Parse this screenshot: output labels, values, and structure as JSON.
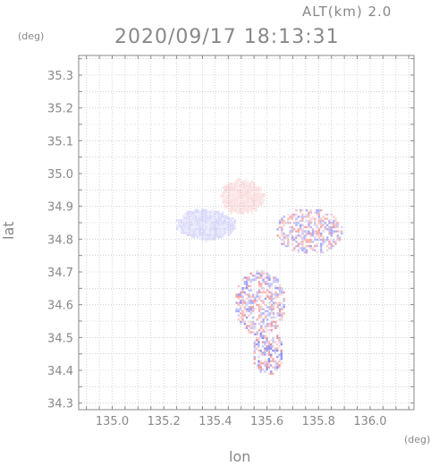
{
  "chart_data": {
    "type": "heatmap",
    "title": "2020/09/17 18:13:31",
    "altitude_label": "ALT(km) 2.0",
    "xlabel": "lon",
    "ylabel": "lat",
    "x_unit": "(deg)",
    "y_unit": "(deg)",
    "xlim": [
      134.87,
      136.17
    ],
    "ylim": [
      34.28,
      35.36
    ],
    "x_ticks": [
      "135.0",
      "135.2",
      "135.4",
      "135.6",
      "135.8",
      "136.0"
    ],
    "y_ticks": [
      "34.3",
      "34.4",
      "34.5",
      "34.6",
      "34.7",
      "34.8",
      "34.9",
      "35.0",
      "35.1",
      "35.2",
      "35.3"
    ],
    "grid": true,
    "colors": {
      "positive": "#f08080",
      "negative": "#8080f0",
      "frame": "#888888",
      "grid": "#bbbbbb"
    },
    "regions": [
      {
        "name": "northwest-lobe-negative",
        "lon": 135.36,
        "lat": 34.84,
        "rlon": 0.12,
        "rlat": 0.05,
        "sign": -1,
        "intensity": 0.35
      },
      {
        "name": "northwest-lobe-positive",
        "lon": 135.5,
        "lat": 34.925,
        "rlon": 0.09,
        "rlat": 0.055,
        "sign": 1,
        "intensity": 0.3
      },
      {
        "name": "east-cluster",
        "lon": 135.76,
        "lat": 34.82,
        "rlon": 0.13,
        "rlat": 0.07,
        "sign": 0,
        "intensity": 0.5
      },
      {
        "name": "central-south-cluster",
        "lon": 135.57,
        "lat": 34.6,
        "rlon": 0.1,
        "rlat": 0.1,
        "sign": 0,
        "intensity": 0.6
      },
      {
        "name": "south-tail-cluster",
        "lon": 135.6,
        "lat": 34.45,
        "rlon": 0.06,
        "rlat": 0.07,
        "sign": 0,
        "intensity": 0.7
      }
    ]
  }
}
